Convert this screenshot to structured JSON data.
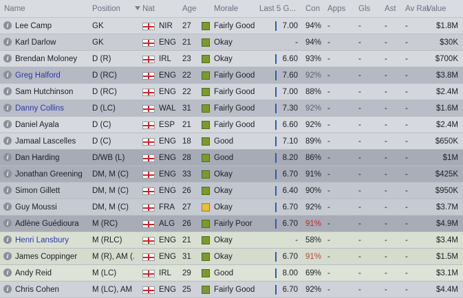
{
  "header": [
    "Name",
    "Position",
    "Nat",
    "Age",
    "Morale",
    "Last 5 G...",
    "Con",
    "Apps",
    "Gls",
    "Ast",
    "Av Rat",
    "Value"
  ],
  "rows": [
    [
      "Lee Camp",
      "GK",
      "NIR",
      "27",
      "Fairly Good",
      "7.00",
      "94%",
      "-",
      "-",
      "-",
      "-",
      "$1.8M"
    ],
    [
      "Karl Darlow",
      "GK",
      "ENG",
      "21",
      "Okay",
      "-",
      "94%",
      "-",
      "-",
      "-",
      "-",
      "$30K"
    ],
    [
      "Brendan Moloney",
      "D (R)",
      "IRL",
      "23",
      "Okay",
      "6.60",
      "93%",
      "-",
      "-",
      "-",
      "-",
      "$700K"
    ],
    [
      "Greg Halford",
      "D (RC)",
      "ENG",
      "22",
      "Fairly Good",
      "7.60",
      "92%",
      "-",
      "-",
      "-",
      "-",
      "$3.8M"
    ],
    [
      "Sam Hutchinson",
      "D (RC)",
      "ENG",
      "22",
      "Fairly Good",
      "7.00",
      "88%",
      "-",
      "-",
      "-",
      "-",
      "$2.4M"
    ],
    [
      "Danny Collins",
      "D (LC)",
      "WAL",
      "31",
      "Fairly Good",
      "7.30",
      "92%",
      "-",
      "-",
      "-",
      "-",
      "$1.6M"
    ],
    [
      "Daniel Ayala",
      "D (C)",
      "ESP",
      "21",
      "Fairly Good",
      "6.60",
      "92%",
      "-",
      "-",
      "-",
      "-",
      "$2.4M"
    ],
    [
      "Jamaal Lascelles",
      "D (C)",
      "ENG",
      "18",
      "Good",
      "7.10",
      "89%",
      "-",
      "-",
      "-",
      "-",
      "$650K"
    ],
    [
      "Dan Harding",
      "D/WB (L)",
      "ENG",
      "28",
      "Good",
      "8.20",
      "86%",
      "-",
      "-",
      "-",
      "-",
      "$1M"
    ],
    [
      "Jonathan Greening",
      "DM, M (C)",
      "ENG",
      "33",
      "Okay",
      "6.70",
      "91%",
      "-",
      "-",
      "-",
      "-",
      "$425K"
    ],
    [
      "Simon Gillett",
      "DM, M (C)",
      "ENG",
      "26",
      "Okay",
      "6.40",
      "90%",
      "-",
      "-",
      "-",
      "-",
      "$950K"
    ],
    [
      "Guy Moussi",
      "DM, M (C)",
      "FRA",
      "27",
      "Okay",
      "6.70",
      "92%",
      "-",
      "-",
      "-",
      "-",
      "$3.7M"
    ],
    [
      "Adlène Guédioura",
      "M (RC)",
      "ALG",
      "26",
      "Fairly Poor",
      "6.70",
      "91%",
      "-",
      "-",
      "-",
      "-",
      "$4.9M"
    ],
    [
      "Henri Lansbury",
      "M (RLC)",
      "ENG",
      "21",
      "Okay",
      "-",
      "58%",
      "-",
      "-",
      "-",
      "-",
      "$3.4M"
    ],
    [
      "James Coppinger",
      "M (R), AM (...",
      "ENG",
      "31",
      "Okay",
      "6.70",
      "91%",
      "-",
      "-",
      "-",
      "-",
      "$1.5M"
    ],
    [
      "Andy Reid",
      "M (LC)",
      "IRL",
      "29",
      "Good",
      "8.00",
      "69%",
      "-",
      "-",
      "-",
      "-",
      "$3.1M"
    ],
    [
      "Chris Cohen",
      "M (LC), AM (...",
      "ENG",
      "25",
      "Fairly Good",
      "6.70",
      "92%",
      "-",
      "-",
      "-",
      "-",
      "$4.4M"
    ]
  ]
}
